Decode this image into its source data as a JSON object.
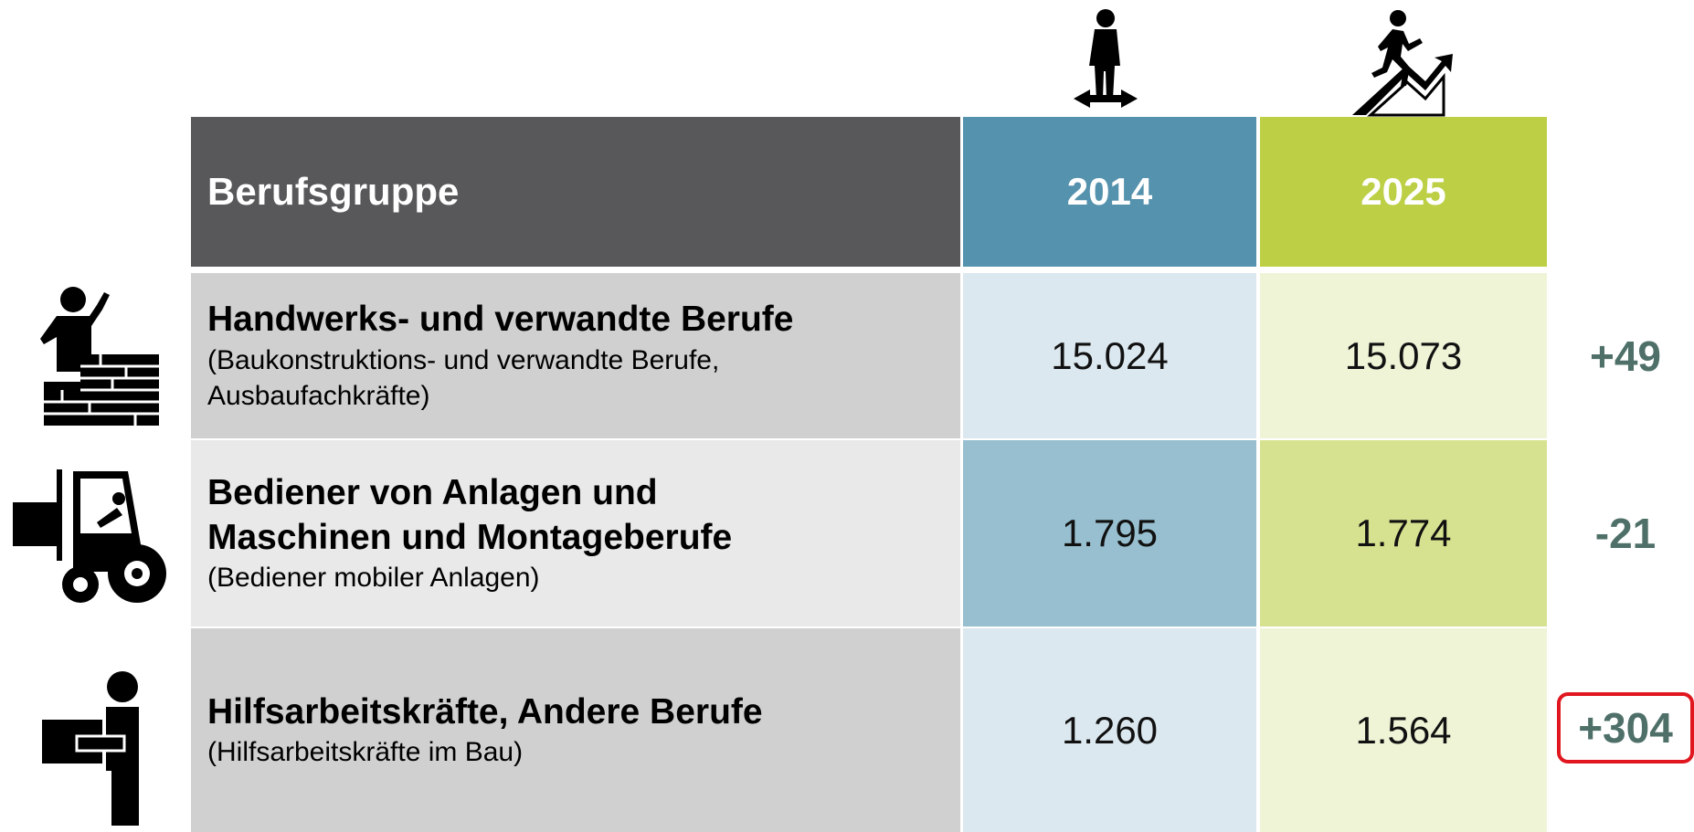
{
  "table": {
    "header": [
      "Berufsgruppe",
      "2014",
      "2025"
    ],
    "rows": [
      {
        "title_lines": [
          "Handwerks- und verwandte Berufe"
        ],
        "subtitle_lines": [
          "(Baukonstruktions- und verwandte Berufe,",
          "Ausbaufachkräfte)"
        ],
        "v2014": "15.024",
        "v2025": "15.073",
        "change": "+49"
      },
      {
        "title_lines": [
          "Bediener von Anlagen und",
          "Maschinen und Montageberufe"
        ],
        "subtitle_lines": [
          "(Bediener mobiler Anlagen)"
        ],
        "v2014": "1.795",
        "v2025": "1.774",
        "change": "-21"
      },
      {
        "title_lines": [
          "Hilfsarbeitskräfte, Andere Berufe"
        ],
        "subtitle_lines": [
          "(Hilfsarbeitskräfte im Bau)"
        ],
        "v2014": "1.260",
        "v2025": "1.564",
        "change": "+304",
        "highlighted": true
      }
    ]
  }
}
